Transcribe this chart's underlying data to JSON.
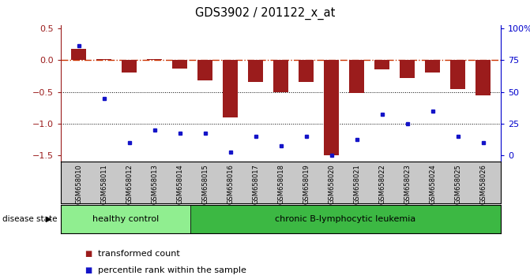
{
  "title": "GDS3902 / 201122_x_at",
  "samples": [
    "GSM658010",
    "GSM658011",
    "GSM658012",
    "GSM658013",
    "GSM658014",
    "GSM658015",
    "GSM658016",
    "GSM658017",
    "GSM658018",
    "GSM658019",
    "GSM658020",
    "GSM658021",
    "GSM658022",
    "GSM658023",
    "GSM658024",
    "GSM658025",
    "GSM658026"
  ],
  "red_bars": [
    0.18,
    0.01,
    -0.2,
    0.01,
    -0.13,
    -0.32,
    -0.9,
    -0.35,
    -0.5,
    -0.35,
    -1.5,
    -0.52,
    -0.15,
    -0.28,
    -0.2,
    -0.45,
    -0.55
  ],
  "blue_dots": [
    0.22,
    -0.6,
    -1.3,
    -1.1,
    -1.15,
    -1.15,
    -1.45,
    -1.2,
    -1.35,
    -1.2,
    -1.5,
    -1.25,
    -0.85,
    -1.0,
    -0.8,
    -1.2,
    -1.3
  ],
  "ylim": [
    -1.6,
    0.55
  ],
  "left_yticks": [
    -1.5,
    -1.0,
    -0.5,
    0.0,
    0.5
  ],
  "right_yticks": [
    0,
    25,
    50,
    75,
    100
  ],
  "healthy_count": 5,
  "bar_color": "#9B1C1C",
  "dot_color": "#1414C8",
  "hline_color": "#CC3300",
  "bg_healthy": "#90EE90",
  "bg_disease": "#3CB843",
  "bg_xaxis": "#C8C8C8",
  "right_yaxis_color": "#0000CC",
  "disease_state_label": "disease state",
  "healthy_label": "healthy control",
  "disease_label": "chronic B-lymphocytic leukemia",
  "legend_bar_label": "transformed count",
  "legend_dot_label": "percentile rank within the sample"
}
